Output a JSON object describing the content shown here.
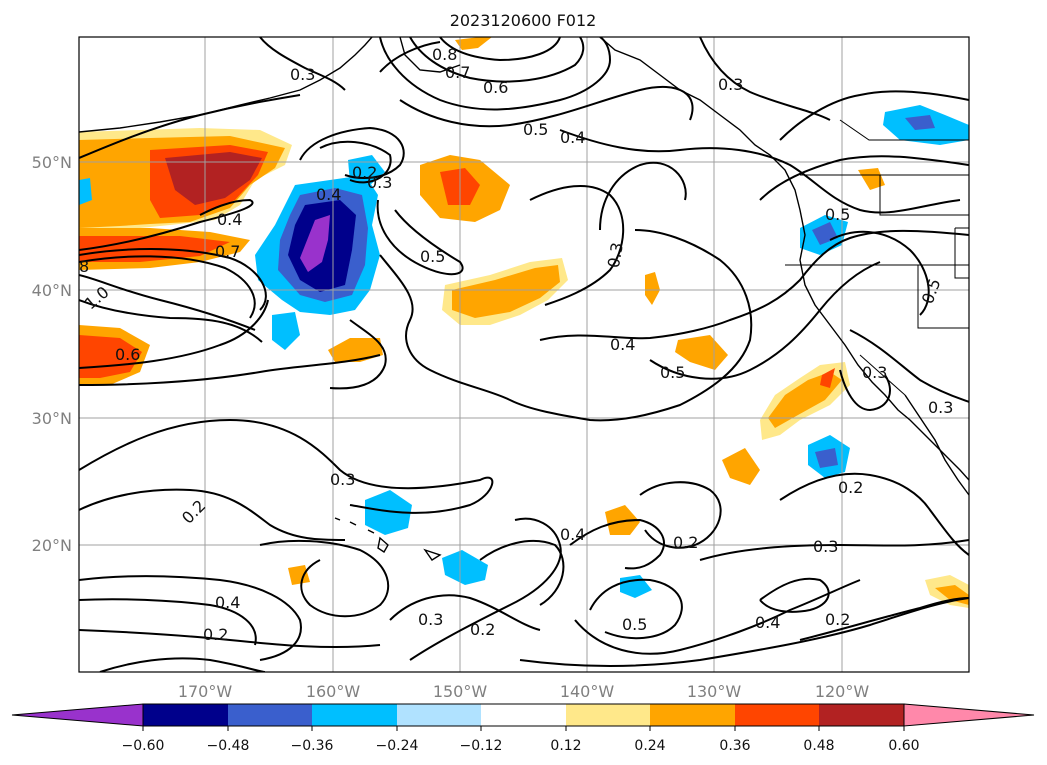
{
  "title": "2023120600 F012",
  "lat_labels": [
    "50°N",
    "40°N",
    "30°N",
    "20°N"
  ],
  "lon_labels": [
    "170°W",
    "160°W",
    "150°W",
    "140°W",
    "130°W",
    "120°W"
  ],
  "contour_labels": [
    "0.3",
    "0.8",
    "0.7",
    "0.6",
    "0.5",
    "0.4",
    "0.3",
    "0.2",
    "0.3",
    "0.4",
    "0.4",
    "0.7",
    "8",
    "1.0",
    "0.6",
    "0.5",
    "0.3",
    "0.4",
    "0.5",
    "0.5",
    "0.5",
    "0.3",
    "0.3",
    "0.2",
    "0.2",
    "0.4",
    "0.3",
    "0.4",
    "0.2",
    "0.5",
    "0.2",
    "0.3",
    "0.3",
    "0.2",
    "0.4",
    "0.2"
  ],
  "colorbar": {
    "ticks": [
      "−0.60",
      "−0.48",
      "−0.36",
      "−0.24",
      "−0.12",
      "0.12",
      "0.24",
      "0.36",
      "0.48",
      "0.60"
    ],
    "colors": [
      "#9932cc",
      "#00008b",
      "#3a5fcd",
      "#00bfff",
      "#b0e2ff",
      "#ffffff",
      "#ffe88a",
      "#ffa500",
      "#ff4500",
      "#b22222",
      "#ff88aa"
    ]
  },
  "fill_colors": {
    "neg_strong": "#9932cc",
    "neg_dark": "#00008b",
    "neg_mid": "#3a5fcd",
    "neg_light": "#00bfff",
    "neg_pale": "#b0e2ff",
    "pos_pale": "#ffe88a",
    "pos_light": "#ffa500",
    "pos_mid": "#ff4500",
    "pos_dark": "#b22222"
  }
}
